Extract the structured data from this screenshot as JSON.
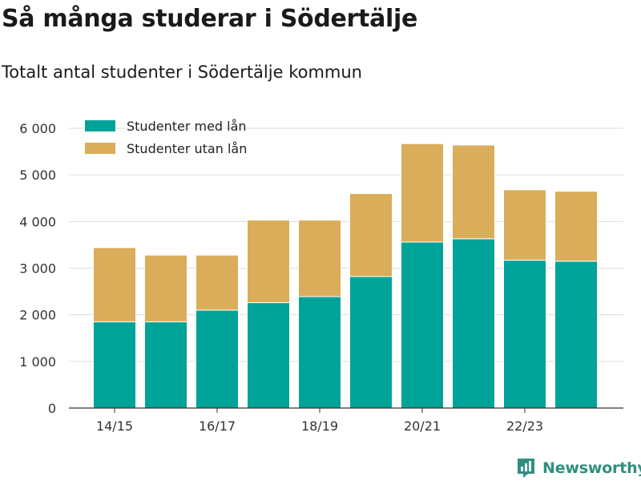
{
  "title": "Så många studerar i Södertälje",
  "subtitle": "Totalt antal studenter i Södertälje kommun",
  "brand": {
    "name": "Newsworthy",
    "icon": "newsworthy-logo-icon"
  },
  "colors": {
    "with_loan": "#00a398",
    "without_loan": "#d9ad5a",
    "grid": "#dddddd",
    "axis": "#333333"
  },
  "chart_data": {
    "type": "bar",
    "stacked": true,
    "categories": [
      "14/15",
      "15/16",
      "16/17",
      "17/18",
      "18/19",
      "19/20",
      "20/21",
      "21/22",
      "22/23",
      "23/24"
    ],
    "x_tick_labels": [
      "14/15",
      "",
      "16/17",
      "",
      "18/19",
      "",
      "20/21",
      "",
      "22/23",
      ""
    ],
    "series": [
      {
        "name": "Studenter med lån",
        "color": "#00a398",
        "values": [
          1850,
          1850,
          2100,
          2260,
          2390,
          2820,
          3560,
          3630,
          3170,
          3150
        ]
      },
      {
        "name": "Studenter utan lån",
        "color": "#d9ad5a",
        "values": [
          1590,
          1430,
          1180,
          1770,
          1640,
          1780,
          2110,
          2010,
          1510,
          1500
        ]
      }
    ],
    "ylim": [
      0,
      6000
    ],
    "yticks": [
      0,
      1000,
      2000,
      3000,
      4000,
      5000,
      6000
    ],
    "ytick_labels": [
      "0",
      "1 000",
      "2 000",
      "3 000",
      "4 000",
      "5 000",
      "6 000"
    ],
    "grid": true,
    "legend_position": "top-left"
  }
}
